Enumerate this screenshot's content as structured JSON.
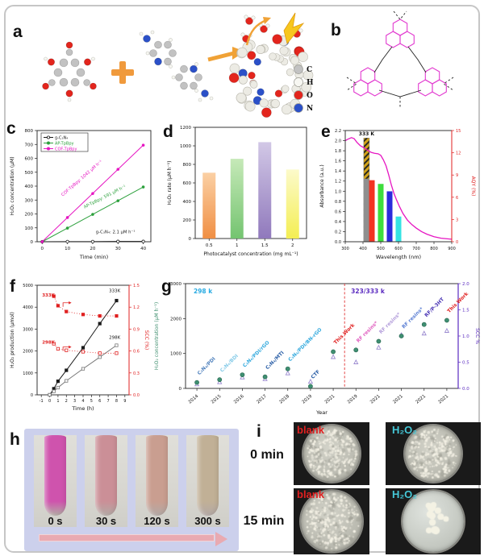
{
  "panels": {
    "a": "a",
    "b": "b",
    "c": "c",
    "d": "d",
    "e": "e",
    "f": "f",
    "g": "g",
    "h": "h",
    "i": "i"
  },
  "panel_a": {
    "atom_legend": [
      {
        "label": "C",
        "color": "#c2c2c2"
      },
      {
        "label": "H",
        "color": "#f7f7f2"
      },
      {
        "label": "O",
        "color": "#e3251d"
      },
      {
        "label": "N",
        "color": "#2b50c8"
      }
    ]
  },
  "chart_data": [
    {
      "id": "c",
      "type": "line",
      "xlabel": "Time (min)",
      "ylabel": "H₂O₂ concentration (μM)",
      "xlim": [
        -2,
        43
      ],
      "ylim": [
        0,
        800
      ],
      "xticks": [
        0,
        10,
        20,
        30,
        40
      ],
      "yticks": [
        0,
        100,
        200,
        300,
        400,
        500,
        600,
        700,
        800
      ],
      "series": [
        {
          "name": "g-C₃N₄",
          "color": "#1a1a1a",
          "marker": "open",
          "x": [
            0,
            10,
            20,
            30,
            40
          ],
          "y": [
            0,
            1,
            1,
            2,
            2
          ]
        },
        {
          "name": "AP-TpBpy",
          "color": "#2ca03c",
          "marker": "solid",
          "x": [
            0,
            10,
            20,
            30,
            40
          ],
          "y": [
            0,
            98,
            197,
            295,
            394
          ]
        },
        {
          "name": "COF-TpBpy",
          "color": "#e616c2",
          "marker": "solid",
          "x": [
            0,
            10,
            20,
            30,
            40
          ],
          "y": [
            0,
            174,
            347,
            521,
            695
          ]
        }
      ],
      "annotations": [
        {
          "text": "COF-TpBpy: 1042 μM h⁻¹",
          "color": "#e616c2"
        },
        {
          "text": "AP-TpBpy: 591 μM h⁻¹",
          "color": "#2ca03c"
        },
        {
          "text": "g-C₃N₄: 2.1 μM h⁻¹",
          "color": "#1a1a1a"
        }
      ]
    },
    {
      "id": "d",
      "type": "bar",
      "xlabel": "Photocatalyst concentration (mg mL⁻¹)",
      "ylabel": "H₂O₂ rate (μM h⁻¹)",
      "ylim": [
        0,
        1200
      ],
      "yticks": [
        0,
        200,
        400,
        600,
        800,
        1000,
        1200
      ],
      "categories": [
        "0.5",
        "1",
        "1.5",
        "2"
      ],
      "values": [
        710,
        860,
        1040,
        745
      ],
      "colors": [
        [
          "#fbd0a4",
          "#f08f44"
        ],
        [
          "#c6e9b8",
          "#74c470"
        ],
        [
          "#d2c8e6",
          "#9079bc"
        ],
        [
          "#fcfacb",
          "#f4ee52"
        ]
      ]
    },
    {
      "id": "e",
      "type": "line+bar",
      "xlabel": "Wavelength (nm)",
      "ylabel_left": "Absorbance (a.u.)",
      "ylabel_right": "AQY (%)",
      "xlim": [
        300,
        900
      ],
      "ylim_left": [
        0,
        2.2
      ],
      "ylim_right": [
        0,
        15
      ],
      "xticks": [
        300,
        400,
        500,
        600,
        700,
        800,
        900
      ],
      "yticks_left": [
        0,
        0.2,
        0.4,
        0.6,
        0.8,
        1,
        1.2,
        1.4,
        1.6,
        1.8,
        2,
        2.2
      ],
      "yticks_right": [
        0,
        3,
        6,
        9,
        12,
        15
      ],
      "curve": {
        "name": "absorbance",
        "color": "#e616c2",
        "points": [
          [
            300,
            2.0
          ],
          [
            315,
            2.03
          ],
          [
            335,
            2.06
          ],
          [
            350,
            2.04
          ],
          [
            365,
            1.97
          ],
          [
            385,
            1.9
          ],
          [
            405,
            1.86
          ],
          [
            425,
            1.81
          ],
          [
            445,
            1.77
          ],
          [
            465,
            1.75
          ],
          [
            485,
            1.74
          ],
          [
            500,
            1.71
          ],
          [
            515,
            1.62
          ],
          [
            530,
            1.5
          ],
          [
            545,
            1.32
          ],
          [
            560,
            1.12
          ],
          [
            575,
            0.95
          ],
          [
            590,
            0.82
          ],
          [
            605,
            0.7
          ],
          [
            625,
            0.56
          ],
          [
            650,
            0.43
          ],
          [
            675,
            0.34
          ],
          [
            700,
            0.27
          ],
          [
            730,
            0.2
          ],
          [
            760,
            0.15
          ],
          [
            800,
            0.1
          ],
          [
            840,
            0.07
          ],
          [
            900,
            0.05
          ]
        ]
      },
      "aqy_bars": [
        {
          "wavelength": 420,
          "aqy": 8.5,
          "color": "#8f8f8f"
        },
        {
          "wavelength": 450,
          "aqy": 8.3,
          "color": "#f23322"
        },
        {
          "wavelength": 500,
          "aqy": 7.8,
          "color": "#3ddd3d"
        },
        {
          "wavelength": 550,
          "aqy": 6.8,
          "color": "#2b2bdc"
        },
        {
          "wavelength": 600,
          "aqy": 3.4,
          "color": "#35e3e3"
        }
      ],
      "hatched_bar": {
        "wavelength": 420,
        "aqy": 14,
        "label": "333 K",
        "fill": "#d2a319"
      }
    },
    {
      "id": "f",
      "type": "line",
      "xlabel": "Time (h)",
      "ylabel_left": "H₂O₂  production (μmol)",
      "ylabel_right": "SCC (%)",
      "xlim": [
        -1.5,
        9.5
      ],
      "ylim_left": [
        0,
        5000
      ],
      "ylim_right": [
        0,
        1.5
      ],
      "xticks": [
        -1,
        0,
        1,
        2,
        3,
        4,
        5,
        6,
        7,
        8,
        9
      ],
      "yticks_left": [
        0,
        1000,
        2000,
        3000,
        4000,
        5000
      ],
      "yticks_right": [
        0,
        0.3,
        0.6,
        0.9,
        1.2,
        1.5
      ],
      "series_left": [
        {
          "name": "333K",
          "color": "#1a1a1a",
          "x": [
            0,
            0.5,
            1,
            2,
            4,
            6,
            8
          ],
          "y": [
            0,
            280,
            620,
            1120,
            2150,
            3250,
            4300
          ]
        },
        {
          "name": "298K",
          "color": "#777777",
          "x": [
            0,
            0.5,
            1,
            2,
            4,
            6,
            8
          ],
          "y": [
            0,
            160,
            330,
            640,
            1190,
            1720,
            2260
          ]
        }
      ],
      "series_right": [
        {
          "name": "333K",
          "color": "#e02020",
          "open": false,
          "x": [
            0.5,
            1,
            2,
            4,
            6,
            8
          ],
          "y": [
            1.35,
            1.22,
            1.14,
            1.1,
            1.08,
            1.08
          ]
        },
        {
          "name": "298K",
          "color": "#e02020",
          "open": true,
          "x": [
            0.5,
            1,
            2,
            4,
            6,
            8
          ],
          "y": [
            0.7,
            0.63,
            0.61,
            0.59,
            0.57,
            0.57
          ]
        }
      ]
    },
    {
      "id": "g",
      "type": "scatter",
      "xlabel": "Year",
      "ylabel_left": "H₂O₂ concentration (μM h⁻¹)",
      "ylabel_right": "SCC %",
      "ylim_left": [
        0,
        3000
      ],
      "ylim_right": [
        0,
        2
      ],
      "yticks_left": [
        0,
        1000,
        2000,
        3000
      ],
      "yticks_right": [
        0,
        0.5,
        1,
        1.5,
        2
      ],
      "region_labels": [
        {
          "text": "298 k",
          "color": "#29abe2"
        },
        {
          "text": "323/333 k",
          "color": "#5b2bc0"
        }
      ],
      "marker_legend": {
        "h2o2_color": "#3f8f72",
        "scc_color": "#9b8ad0"
      },
      "divider_after_index": 6,
      "points": [
        {
          "year": "2014",
          "label": "C₃N₄/PDI",
          "label_color": "#4f81bd",
          "h2o2": 170,
          "scc": 0.08
        },
        {
          "year": "2015",
          "label": "C₃N₄/BDI",
          "label_color": "#85cbe8",
          "h2o2": 250,
          "scc": 0.12
        },
        {
          "year": "2016",
          "label": "C₃N₄/PDI/rGO",
          "label_color": "#33aade",
          "h2o2": 390,
          "scc": 0.21
        },
        {
          "year": "2017",
          "label": "C₃N₄/MTI",
          "label_color": "#2b5fa7",
          "h2o2": 330,
          "scc": 0.18
        },
        {
          "year": "2018",
          "label": "C₃N₄/PDI/BN-rGO",
          "label_color": "#33aade",
          "h2o2": 560,
          "scc": 0.29
        },
        {
          "year": "2019",
          "label": "CTF",
          "label_color": "#2b5fa7",
          "h2o2": 60,
          "scc": 0.13
        },
        {
          "year": "2021",
          "label": "This Work",
          "label_color": "#e02020",
          "h2o2": 1050,
          "scc": 0.6
        },
        {
          "year": "2019",
          "label": "RF resins*",
          "label_color": "#e060c0",
          "h2o2": 1100,
          "scc": 0.5
        },
        {
          "year": "2021",
          "label": "RF resins*",
          "label_color": "#b39ddb",
          "h2o2": 1350,
          "scc": 0.78
        },
        {
          "year": "2021",
          "label": "RF resins*",
          "label_color": "#5b7fd4",
          "h2o2": 1500,
          "scc": 1.02
        },
        {
          "year": "2021",
          "label": "RF/P-3HT",
          "label_color": "#4a35b5",
          "h2o2": 1830,
          "scc": 1.05
        },
        {
          "year": "2021",
          "label": "This Work",
          "label_color": "#e02020",
          "h2o2": 1950,
          "scc": 1.1
        }
      ]
    }
  ],
  "panel_h": {
    "background": "#ccd0ec",
    "times": [
      {
        "label": "0 s",
        "tube_color": "#cf53ad"
      },
      {
        "label": "30 s",
        "tube_color": "#cb8f97"
      },
      {
        "label": "120 s",
        "tube_color": "#c99e90"
      },
      {
        "label": "300 s",
        "tube_color": "#c1b096"
      }
    ],
    "arrow_color": "#e9aab1"
  },
  "panel_i": {
    "row_labels": [
      "0 min",
      "15 min"
    ],
    "dishes": [
      {
        "label": "blank",
        "label_color": "#e02020",
        "density": "dense"
      },
      {
        "label": "H₂O₂",
        "label_color": "#45c8d8",
        "density": "dense"
      },
      {
        "label": "blank",
        "label_color": "#e02020",
        "density": "dense"
      },
      {
        "label": "H₂O₂",
        "label_color": "#45c8d8",
        "density": "sparse"
      }
    ]
  }
}
